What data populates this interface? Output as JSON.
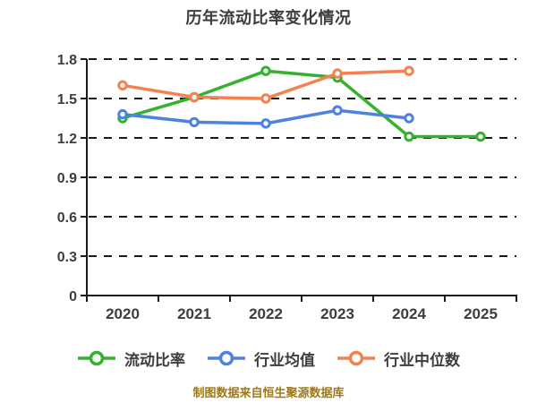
{
  "caption": "制图数据来自恒生聚源数据库",
  "colors": {
    "background": "#ffffff",
    "title_text": "#3d3d3d",
    "tick_label_text": "#3d3d3d",
    "axis_line": "#1a1a1a",
    "gridline": "#1a1a1a",
    "marker_fill": "#ffffff",
    "caption_text": "#a07818"
  },
  "chart_data": {
    "type": "line",
    "title": "历年流动比率变化情况",
    "xlabel": "",
    "ylabel": "",
    "categories": [
      "2020",
      "2021",
      "2022",
      "2023",
      "2024",
      "2025"
    ],
    "series": [
      {
        "name": "流动比率",
        "color": "#35b22d",
        "values": [
          1.35,
          1.51,
          1.71,
          1.66,
          1.21,
          1.21
        ]
      },
      {
        "name": "行业均值",
        "color": "#4d82e0",
        "values": [
          1.38,
          1.32,
          1.31,
          1.41,
          1.35,
          null
        ]
      },
      {
        "name": "行业中位数",
        "color": "#f4814f",
        "values": [
          1.6,
          1.51,
          1.5,
          1.69,
          1.71,
          null
        ]
      }
    ],
    "ylim": [
      0,
      1.8
    ],
    "yticks": [
      0,
      0.3,
      0.6,
      0.9,
      1.2,
      1.5,
      1.8
    ],
    "ytick_labels": [
      "0",
      "0.3",
      "0.6",
      "0.9",
      "1.2",
      "1.5",
      "1.8"
    ],
    "grid": "horizontal-dashed",
    "legend_position": "bottom",
    "marker": "circle-white-fill"
  }
}
